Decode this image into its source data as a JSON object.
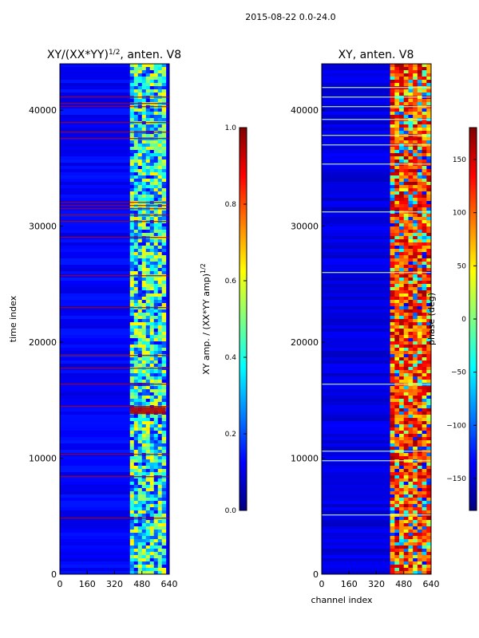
{
  "suptitle": "2015-08-22 0.0-24.0",
  "chart_data": [
    {
      "type": "heatmap",
      "title": "XY/(XX*YY)",
      "title_superscript": "1/2",
      "title_suffix": ", anten. V8",
      "xlabel": "",
      "ylabel": "time index",
      "xlim": [
        0,
        640
      ],
      "ylim": [
        0,
        44000
      ],
      "xticks": [
        "0",
        "160",
        "320",
        "480",
        "640"
      ],
      "xtick_values": [
        0,
        160,
        320,
        480,
        640
      ],
      "yticks": [
        "0",
        "10000",
        "20000",
        "30000",
        "40000"
      ],
      "ytick_values": [
        0,
        10000,
        20000,
        30000,
        40000
      ],
      "colormap": "jet",
      "colorbar": {
        "label": "XY amp. / (XX*YY amp)",
        "label_superscript": "1/2",
        "range": [
          0.0,
          1.0
        ],
        "ticks": [
          "0.0",
          "0.2",
          "0.4",
          "0.6",
          "0.8",
          "1.0"
        ],
        "tick_values": [
          0.0,
          0.2,
          0.4,
          0.6,
          0.8,
          1.0
        ]
      },
      "description_values": {
        "background_level": 0.12,
        "active_channel_band": [
          410,
          620
        ],
        "band_level_range": [
          0.25,
          0.65
        ],
        "flagged_rows_level": 0.95,
        "flag_block_times": [
          13800,
          14400
        ]
      }
    },
    {
      "type": "heatmap",
      "title": "XY, anten. V8",
      "xlabel": "channel index",
      "ylabel": "",
      "xlim": [
        0,
        640
      ],
      "ylim": [
        0,
        44000
      ],
      "xticks": [
        "0",
        "160",
        "320",
        "480",
        "640"
      ],
      "xtick_values": [
        0,
        160,
        320,
        480,
        640
      ],
      "yticks": [
        "0",
        "10000",
        "20000",
        "30000",
        "40000"
      ],
      "ytick_values": [
        0,
        10000,
        20000,
        30000,
        40000
      ],
      "colormap": "jet",
      "colorbar": {
        "label": "phase (deg)",
        "range": [
          -180,
          180
        ],
        "ticks": [
          "−150",
          "−100",
          "−50",
          "0",
          "50",
          "100",
          "150"
        ],
        "tick_values": [
          -150,
          -100,
          -50,
          0,
          50,
          100,
          150
        ]
      },
      "description_values": {
        "background_level": -145,
        "active_channel_band": [
          400,
          640
        ],
        "band_level_range": [
          60,
          170
        ]
      }
    }
  ]
}
